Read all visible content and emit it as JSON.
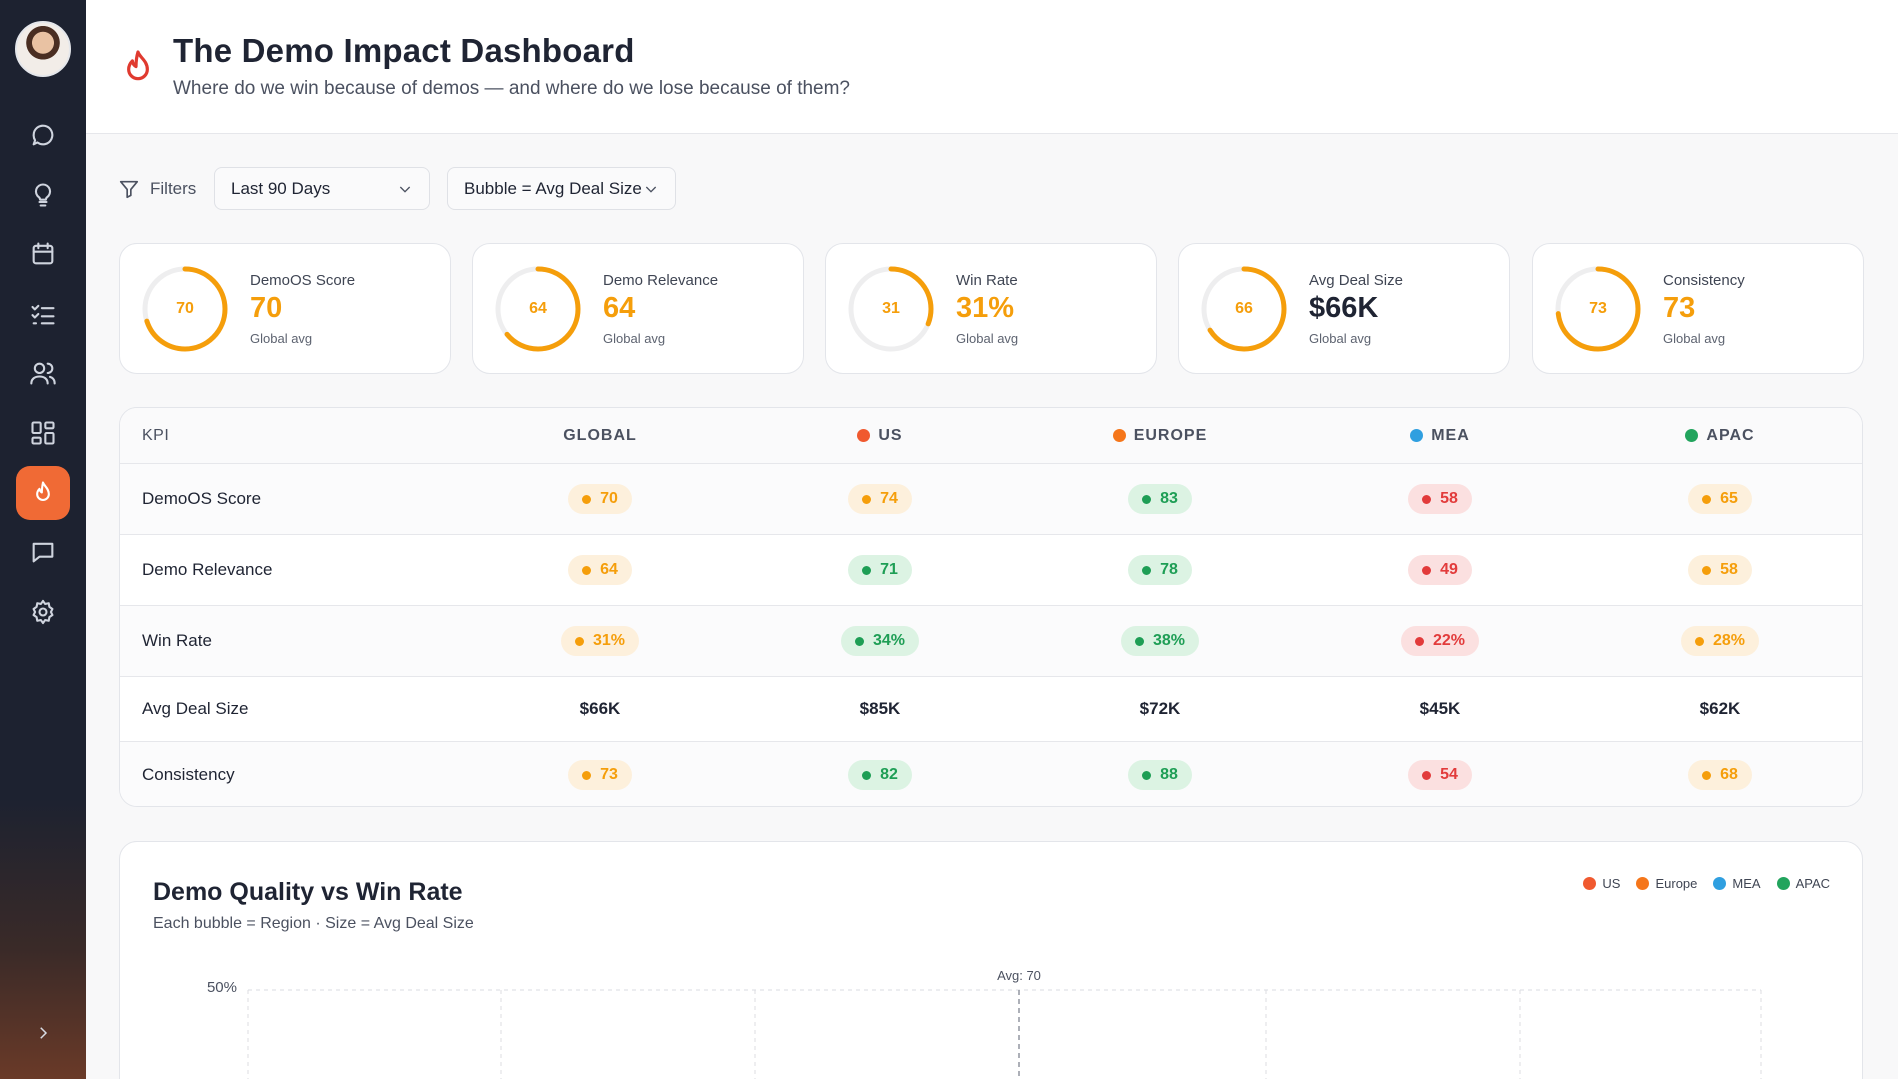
{
  "header": {
    "title": "The Demo Impact Dashboard",
    "subtitle": "Where do we win because of demos — and where do we lose because of them?"
  },
  "sidebar": {
    "items": [
      "chat-icon",
      "lightbulb-icon",
      "calendar-icon",
      "checklist-icon",
      "users-icon",
      "grid-icon",
      "flame-icon",
      "message-icon",
      "gear-icon"
    ],
    "active": "flame-icon"
  },
  "filters": {
    "label": "Filters",
    "period": "Last 90 Days",
    "bubble": "Bubble = Avg Deal Size"
  },
  "kpis": [
    {
      "name": "DemoOS Score",
      "ring": "70",
      "value": "70",
      "note": "Global avg",
      "progress": 0.7
    },
    {
      "name": "Demo Relevance",
      "ring": "64",
      "value": "64",
      "note": "Global avg",
      "progress": 0.64
    },
    {
      "name": "Win Rate",
      "ring": "31",
      "value": "31%",
      "note": "Global avg",
      "progress": 0.31
    },
    {
      "name": "Avg Deal Size",
      "ring": "66",
      "value": "$66K",
      "note": "Global avg",
      "progress": 0.66
    },
    {
      "name": "Consistency",
      "ring": "73",
      "value": "73",
      "note": "Global avg",
      "progress": 0.73
    }
  ],
  "table": {
    "headers": [
      "KPI",
      "GLOBAL",
      "US",
      "EUROPE",
      "MEA",
      "APAC"
    ],
    "region_colors": {
      "US": "#f0592f",
      "EUROPE": "#f5761a",
      "MEA": "#2f9fe0",
      "APAC": "#22a45d"
    },
    "rows": [
      {
        "label": "DemoOS Score",
        "values": [
          "70",
          "74",
          "83",
          "58",
          "65"
        ],
        "status": [
          "orange",
          "orange",
          "green",
          "red",
          "orange"
        ]
      },
      {
        "label": "Demo Relevance",
        "values": [
          "64",
          "71",
          "78",
          "49",
          "58"
        ],
        "status": [
          "orange",
          "green",
          "green",
          "red",
          "orange"
        ]
      },
      {
        "label": "Win Rate",
        "values": [
          "31%",
          "34%",
          "38%",
          "22%",
          "28%"
        ],
        "status": [
          "orange",
          "green",
          "green",
          "red",
          "orange"
        ]
      },
      {
        "label": "Avg Deal Size",
        "values": [
          "$66K",
          "$85K",
          "$72K",
          "$45K",
          "$62K"
        ],
        "status": [
          "plain",
          "plain",
          "plain",
          "plain",
          "plain"
        ]
      },
      {
        "label": "Consistency",
        "values": [
          "73",
          "82",
          "88",
          "54",
          "68"
        ],
        "status": [
          "orange",
          "green",
          "green",
          "red",
          "orange"
        ]
      }
    ]
  },
  "chart": {
    "title": "Demo Quality vs Win Rate",
    "subtitle": "Each bubble = Region · Size = Avg Deal Size",
    "legend": [
      "US",
      "Europe",
      "MEA",
      "APAC"
    ],
    "legend_colors": [
      "#f0592f",
      "#f5761a",
      "#2f9fe0",
      "#22a45d"
    ]
  },
  "chart_data": {
    "type": "scatter",
    "title": "Demo Quality vs Win Rate",
    "subtitle": "Each bubble = Region · Size = Avg Deal Size",
    "series": [
      {
        "name": "US"
      },
      {
        "name": "Europe"
      },
      {
        "name": "MEA"
      },
      {
        "name": "APAC"
      }
    ],
    "y_tick_labels": [
      "50%"
    ],
    "reference_line_label": "Avg: 70",
    "grid": true,
    "legend_position": "top-right"
  }
}
